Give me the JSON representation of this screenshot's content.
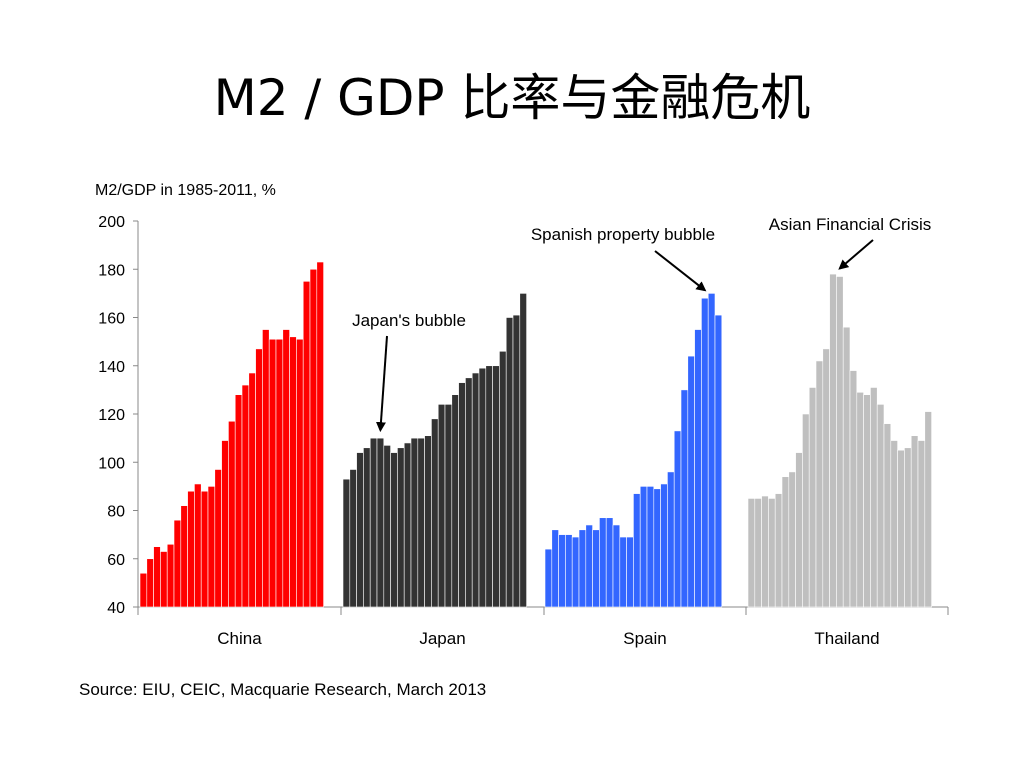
{
  "slide": {
    "title": "M2 / GDP 比率与金融危机",
    "source": "Source: EIU, CEIC, Macquarie Research, March 2013"
  },
  "chart_data": {
    "type": "bar",
    "title": "",
    "ylabel": "M2/GDP in 1985-2011, %",
    "xlabel": "",
    "ylim": [
      40,
      200
    ],
    "yticks": [
      40,
      60,
      80,
      100,
      120,
      140,
      160,
      180,
      200
    ],
    "grid": false,
    "groups": [
      {
        "name": "China",
        "color": "#ff0000",
        "values": [
          54,
          60,
          65,
          63,
          66,
          76,
          82,
          88,
          91,
          88,
          90,
          97,
          109,
          117,
          128,
          132,
          137,
          147,
          155,
          151,
          151,
          155,
          152,
          151,
          175,
          180,
          183
        ]
      },
      {
        "name": "Japan",
        "color": "#333333",
        "values": [
          93,
          97,
          104,
          106,
          110,
          110,
          107,
          104,
          106,
          108,
          110,
          110,
          111,
          118,
          124,
          124,
          128,
          133,
          135,
          137,
          139,
          140,
          140,
          146,
          160,
          161,
          170
        ]
      },
      {
        "name": "Spain",
        "color": "#3366ff",
        "values": [
          64,
          72,
          70,
          70,
          69,
          72,
          74,
          72,
          77,
          77,
          74,
          69,
          69,
          87,
          90,
          90,
          89,
          91,
          96,
          113,
          130,
          144,
          155,
          168,
          170,
          161
        ]
      },
      {
        "name": "Thailand",
        "color": "#bfbfbf",
        "values": [
          85,
          85,
          86,
          85,
          87,
          94,
          96,
          104,
          120,
          131,
          142,
          147,
          178,
          177,
          156,
          138,
          129,
          128,
          131,
          124,
          116,
          109,
          105,
          106,
          111,
          109,
          121
        ]
      }
    ],
    "annotations": [
      {
        "text": "Japan's bubble",
        "group": "Japan",
        "target_bar": 5
      },
      {
        "text": "Spanish property bubble",
        "group": "Spain",
        "target_bar": 23
      },
      {
        "text": "Asian Financial Crisis",
        "group": "Thailand",
        "target_bar": 13
      }
    ]
  }
}
